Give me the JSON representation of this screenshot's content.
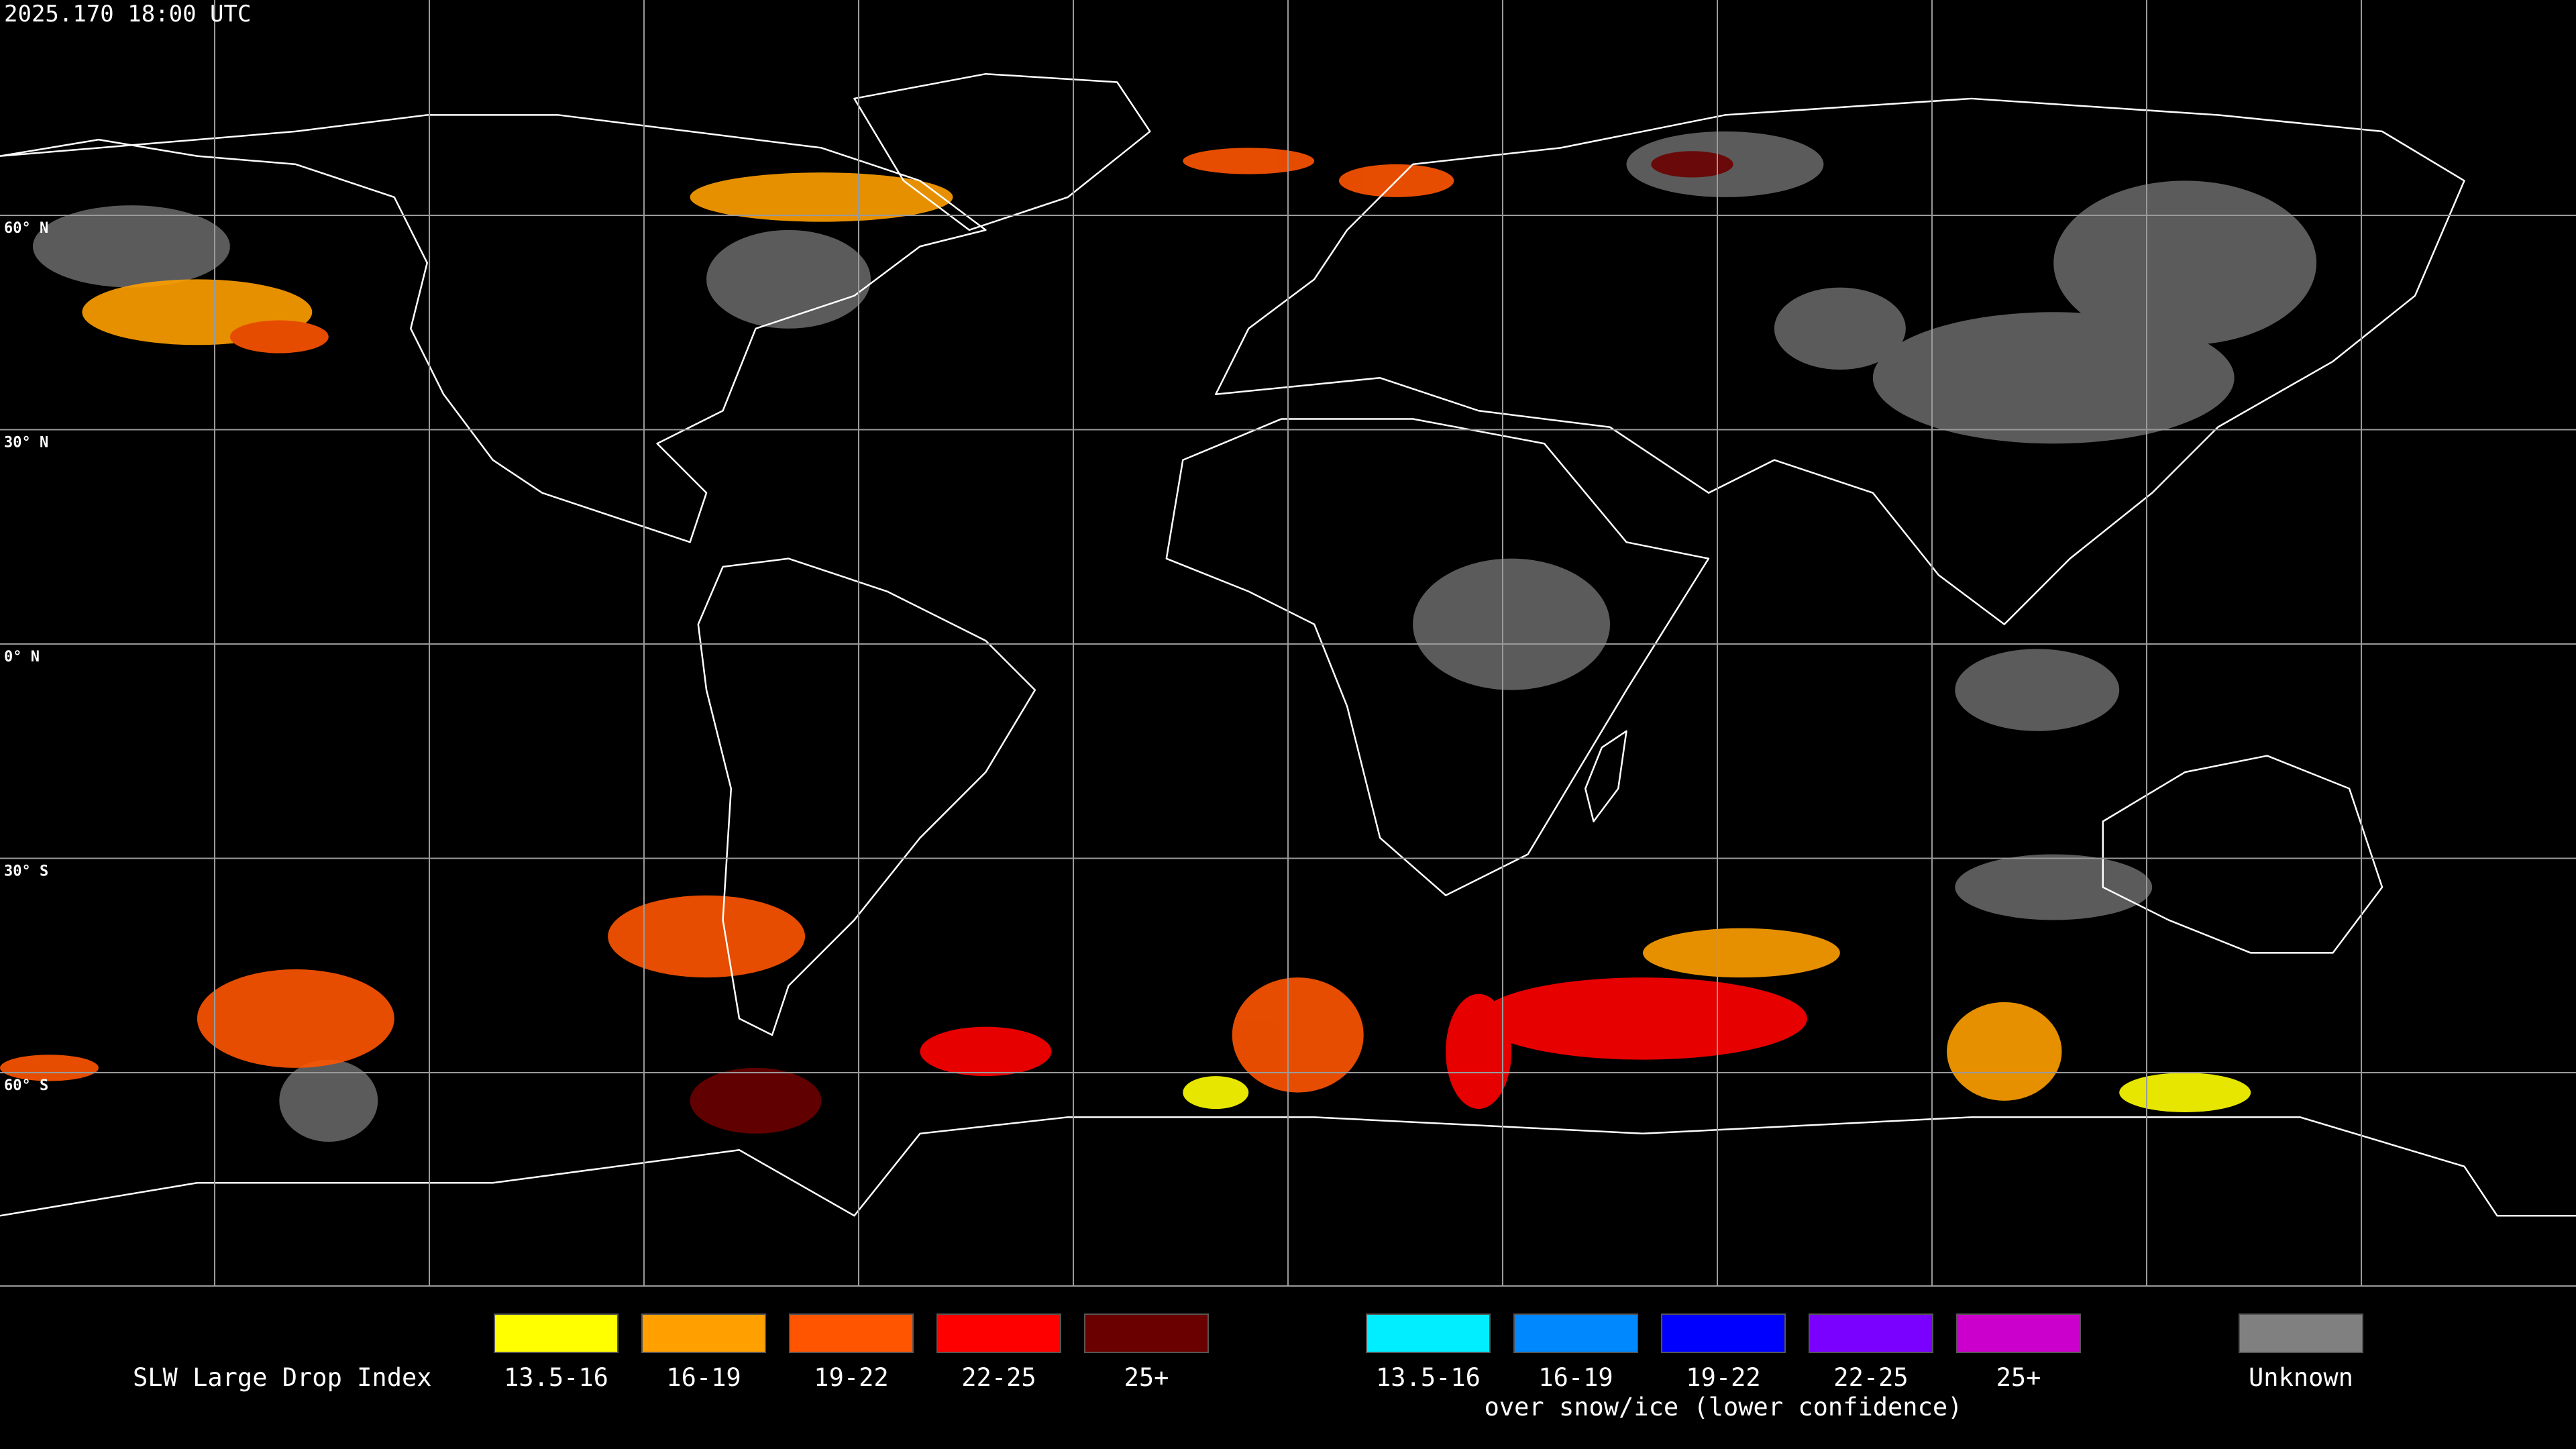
{
  "header": {
    "title": "2025.170 18:00 UTC"
  },
  "map": {
    "latitude_labels": [
      "60° N",
      "30° N",
      "0° N",
      "30° S",
      "60° S"
    ]
  },
  "legend": {
    "title": "SLW Large Drop Index",
    "groups": [
      {
        "items": [
          {
            "label": "13.5-16",
            "color": "#ffff00"
          },
          {
            "label": "16-19",
            "color": "#ffa000"
          },
          {
            "label": "19-22",
            "color": "#ff5500"
          },
          {
            "label": "22-25",
            "color": "#ff0000"
          },
          {
            "label": "25+",
            "color": "#6b0000"
          }
        ]
      },
      {
        "items": [
          {
            "label": "13.5-16",
            "color": "#00eeff"
          },
          {
            "label": "16-19",
            "color": "#0088ff"
          },
          {
            "label": "19-22",
            "color": "#0000ff"
          },
          {
            "label": "22-25",
            "color": "#7a00ff"
          },
          {
            "label": "25+",
            "color": "#cc00cc"
          }
        ],
        "note": "over snow/ice (lower confidence)"
      },
      {
        "items": [
          {
            "label": "Unknown",
            "color": "#808080"
          }
        ]
      }
    ]
  }
}
